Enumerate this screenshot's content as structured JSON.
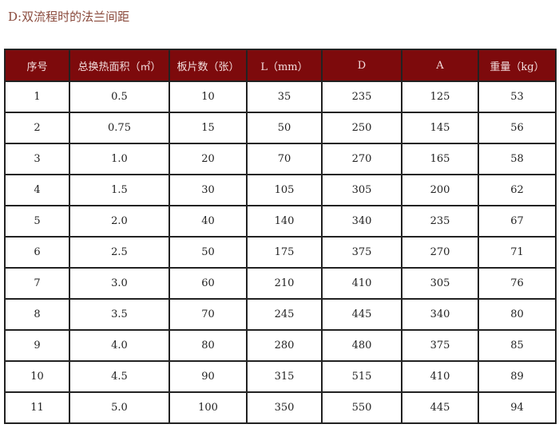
{
  "title": "D:双流程时的法兰间距",
  "colors": {
    "header_bg": "#7d0a0c",
    "title": "#8a4a3c"
  },
  "table": {
    "headers": [
      "序号",
      "总换热面积（㎡）",
      "板片数（张）",
      "L（mm）",
      "D",
      "A",
      "重量（kg）"
    ],
    "rows": [
      [
        "1",
        "0.5",
        "10",
        "35",
        "235",
        "125",
        "53"
      ],
      [
        "2",
        "0.75",
        "15",
        "50",
        "250",
        "145",
        "56"
      ],
      [
        "3",
        "1.0",
        "20",
        "70",
        "270",
        "165",
        "58"
      ],
      [
        "4",
        "1.5",
        "30",
        "105",
        "305",
        "200",
        "62"
      ],
      [
        "5",
        "2.0",
        "40",
        "140",
        "340",
        "235",
        "67"
      ],
      [
        "6",
        "2.5",
        "50",
        "175",
        "375",
        "270",
        "71"
      ],
      [
        "7",
        "3.0",
        "60",
        "210",
        "410",
        "305",
        "76"
      ],
      [
        "8",
        "3.5",
        "70",
        "245",
        "445",
        "340",
        "80"
      ],
      [
        "9",
        "4.0",
        "80",
        "280",
        "480",
        "375",
        "85"
      ],
      [
        "10",
        "4.5",
        "90",
        "315",
        "515",
        "410",
        "89"
      ],
      [
        "11",
        "5.0",
        "100",
        "350",
        "550",
        "445",
        "94"
      ]
    ]
  }
}
